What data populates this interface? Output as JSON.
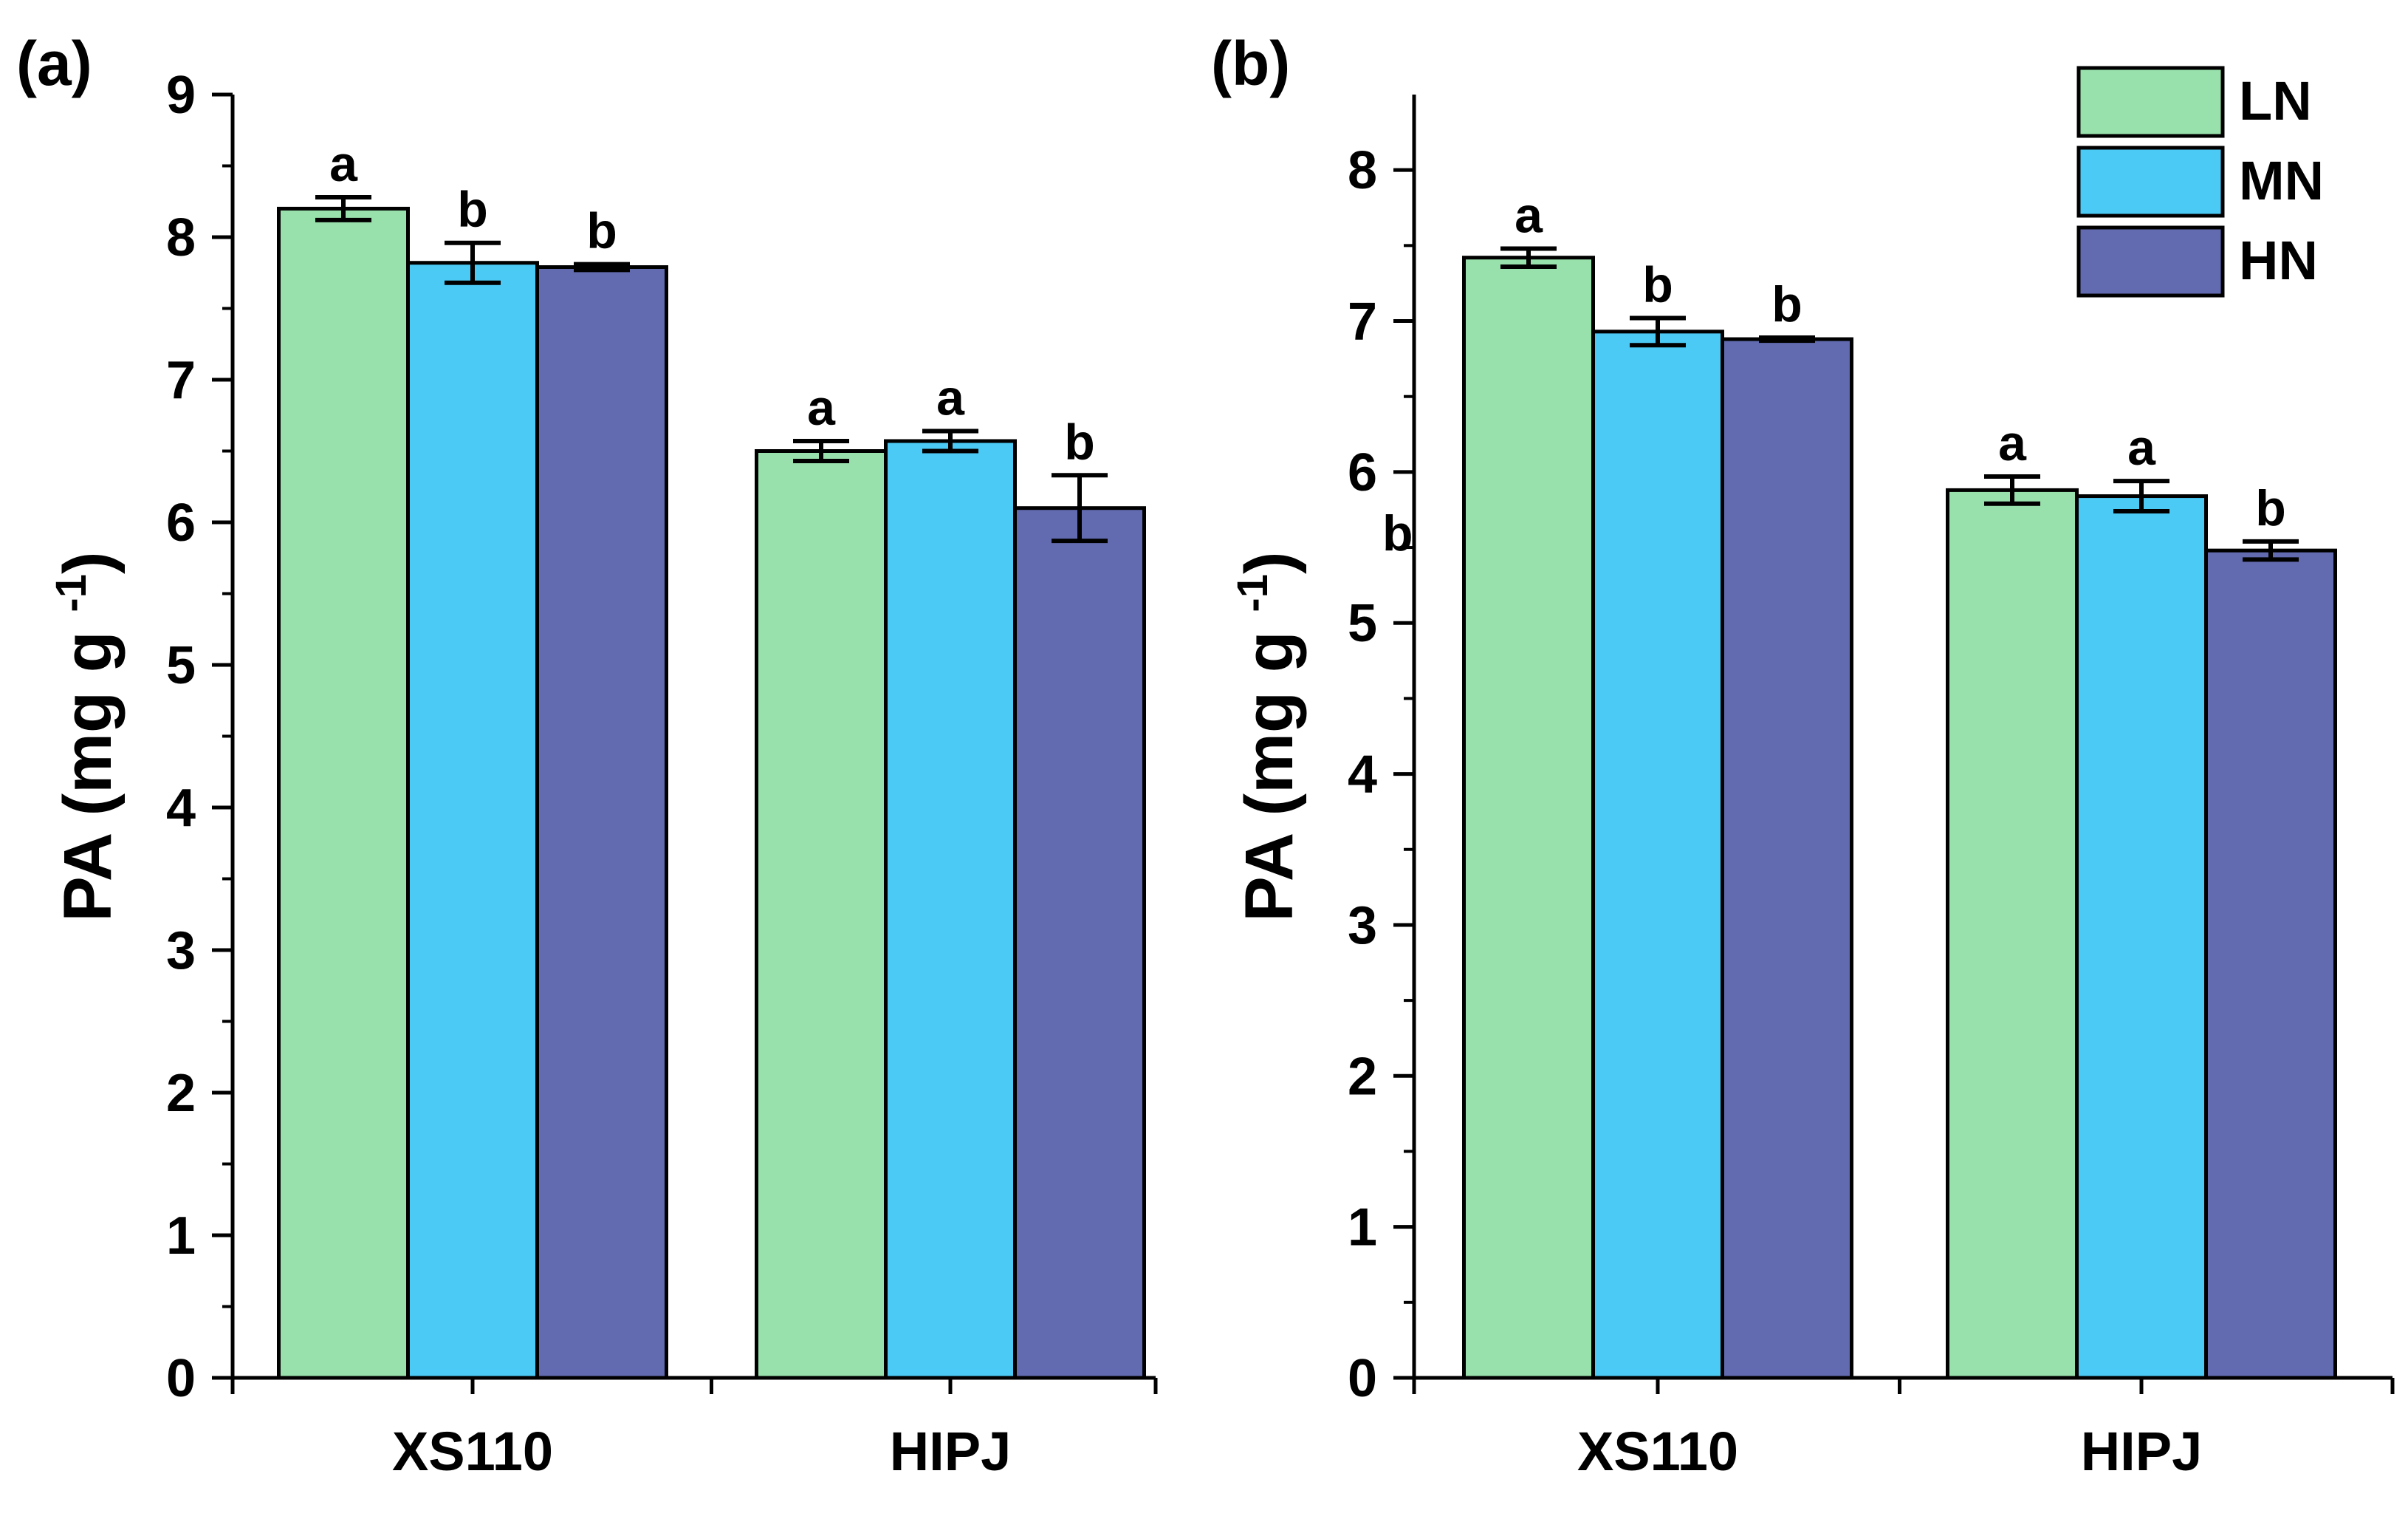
{
  "colors": {
    "LN": "#98e0ac",
    "MN": "#4bcaf6",
    "HN": "#626bb0",
    "axis": "#000000"
  },
  "legend": {
    "items": [
      "LN",
      "MN",
      "HN"
    ],
    "placement": "top-right"
  },
  "chart_data": [
    {
      "panel": "(a)",
      "type": "bar",
      "categories": [
        "XS110",
        "HIPJ"
      ],
      "ylabel": "PA (mg g",
      "ylabel_sup": "-1",
      "ylabel_close": ")",
      "ylim": [
        0,
        9
      ],
      "yticks": [
        0,
        1,
        2,
        3,
        4,
        5,
        6,
        7,
        8,
        9
      ],
      "series": [
        {
          "name": "LN",
          "values": [
            8.2,
            6.5
          ],
          "errors": [
            0.08,
            0.07
          ],
          "letters": [
            "a",
            "a"
          ]
        },
        {
          "name": "MN",
          "values": [
            7.82,
            6.57
          ],
          "errors": [
            0.14,
            0.07
          ],
          "letters": [
            "b",
            "a"
          ]
        },
        {
          "name": "HN",
          "values": [
            7.79,
            6.1
          ],
          "errors": [
            0.02,
            0.23
          ],
          "letters": [
            "b",
            "b"
          ]
        }
      ]
    },
    {
      "panel": "(b)",
      "type": "bar",
      "categories": [
        "XS110",
        "HIPJ"
      ],
      "ylabel": "PA (mg g",
      "ylabel_sup": "-1",
      "ylabel_close": ")",
      "ylim": [
        0,
        8.5
      ],
      "yticks": [
        0,
        1,
        2,
        3,
        4,
        5,
        6,
        7,
        8
      ],
      "stray_letter": "b",
      "series": [
        {
          "name": "LN",
          "values": [
            7.42,
            5.88
          ],
          "errors": [
            0.06,
            0.09
          ],
          "letters": [
            "a",
            "a"
          ]
        },
        {
          "name": "MN",
          "values": [
            6.93,
            5.84
          ],
          "errors": [
            0.09,
            0.1
          ],
          "letters": [
            "b",
            "a"
          ]
        },
        {
          "name": "HN",
          "values": [
            6.88,
            5.48
          ],
          "errors": [
            0.01,
            0.06
          ],
          "letters": [
            "b",
            "b"
          ]
        }
      ]
    }
  ]
}
